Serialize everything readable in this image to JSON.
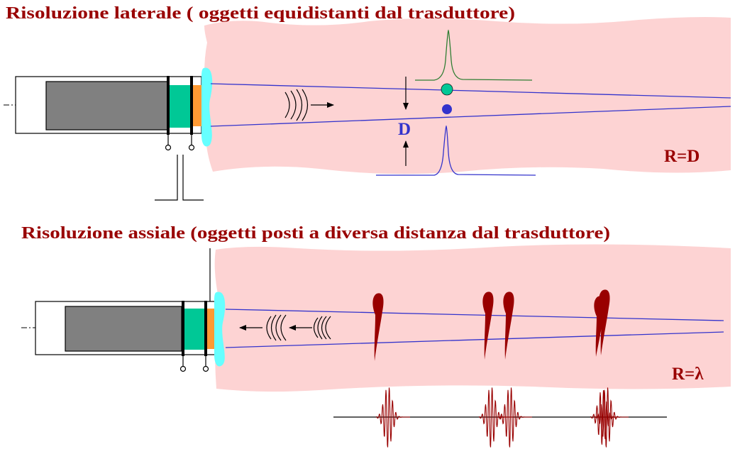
{
  "lateral": {
    "title": "Risoluzione laterale ( oggetti equidistanti dal trasduttore)",
    "distance_label": "D",
    "resolution_label": "R=D"
  },
  "axial": {
    "title": "Risoluzione assiale (oggetti posti a diversa distanza dal trasduttore)",
    "resolution_label": "R=λ"
  },
  "colors": {
    "title": "#990000",
    "tissue": "#FDD3D3",
    "housing": "#808080",
    "crystal": "#00C896",
    "matching_layer": "#FF9A33",
    "gel": "#66FFFF",
    "beam": "#3333CC",
    "green_echo": "#2E7D32",
    "reflector": "#990000"
  }
}
